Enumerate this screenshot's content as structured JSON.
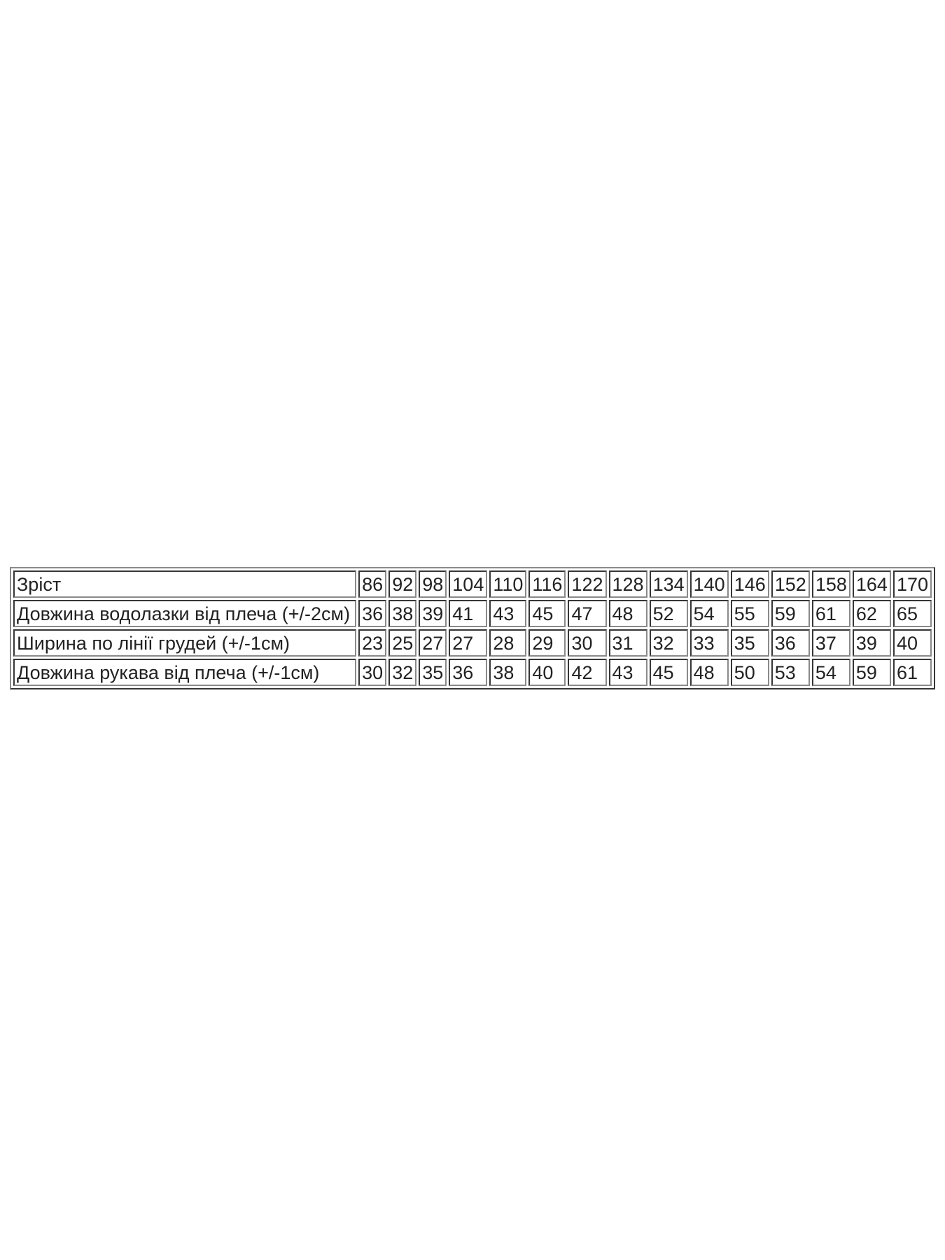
{
  "size_table": {
    "rows": [
      {
        "label": "Зріст",
        "values": [
          "86",
          "92",
          "98",
          "104",
          "110",
          "116",
          "122",
          "128",
          "134",
          "140",
          "146",
          "152",
          "158",
          "164",
          "170"
        ]
      },
      {
        "label": "Довжина водолазки від плеча (+/-2см)",
        "values": [
          "36",
          "38",
          "39",
          "41",
          "43",
          "45",
          "47",
          "48",
          "52",
          "54",
          "55",
          "59",
          "61",
          "62",
          "65"
        ]
      },
      {
        "label": "Ширина по лінії грудей (+/-1см)",
        "values": [
          "23",
          "25",
          "27",
          "27",
          "28",
          "29",
          "30",
          "31",
          "32",
          "33",
          "35",
          "36",
          "37",
          "39",
          "40"
        ]
      },
      {
        "label": "Довжина рукава від плеча (+/-1см)",
        "values": [
          "30",
          "32",
          "35",
          "36",
          "38",
          "40",
          "42",
          "43",
          "45",
          "48",
          "50",
          "53",
          "54",
          "59",
          "61"
        ]
      }
    ]
  }
}
